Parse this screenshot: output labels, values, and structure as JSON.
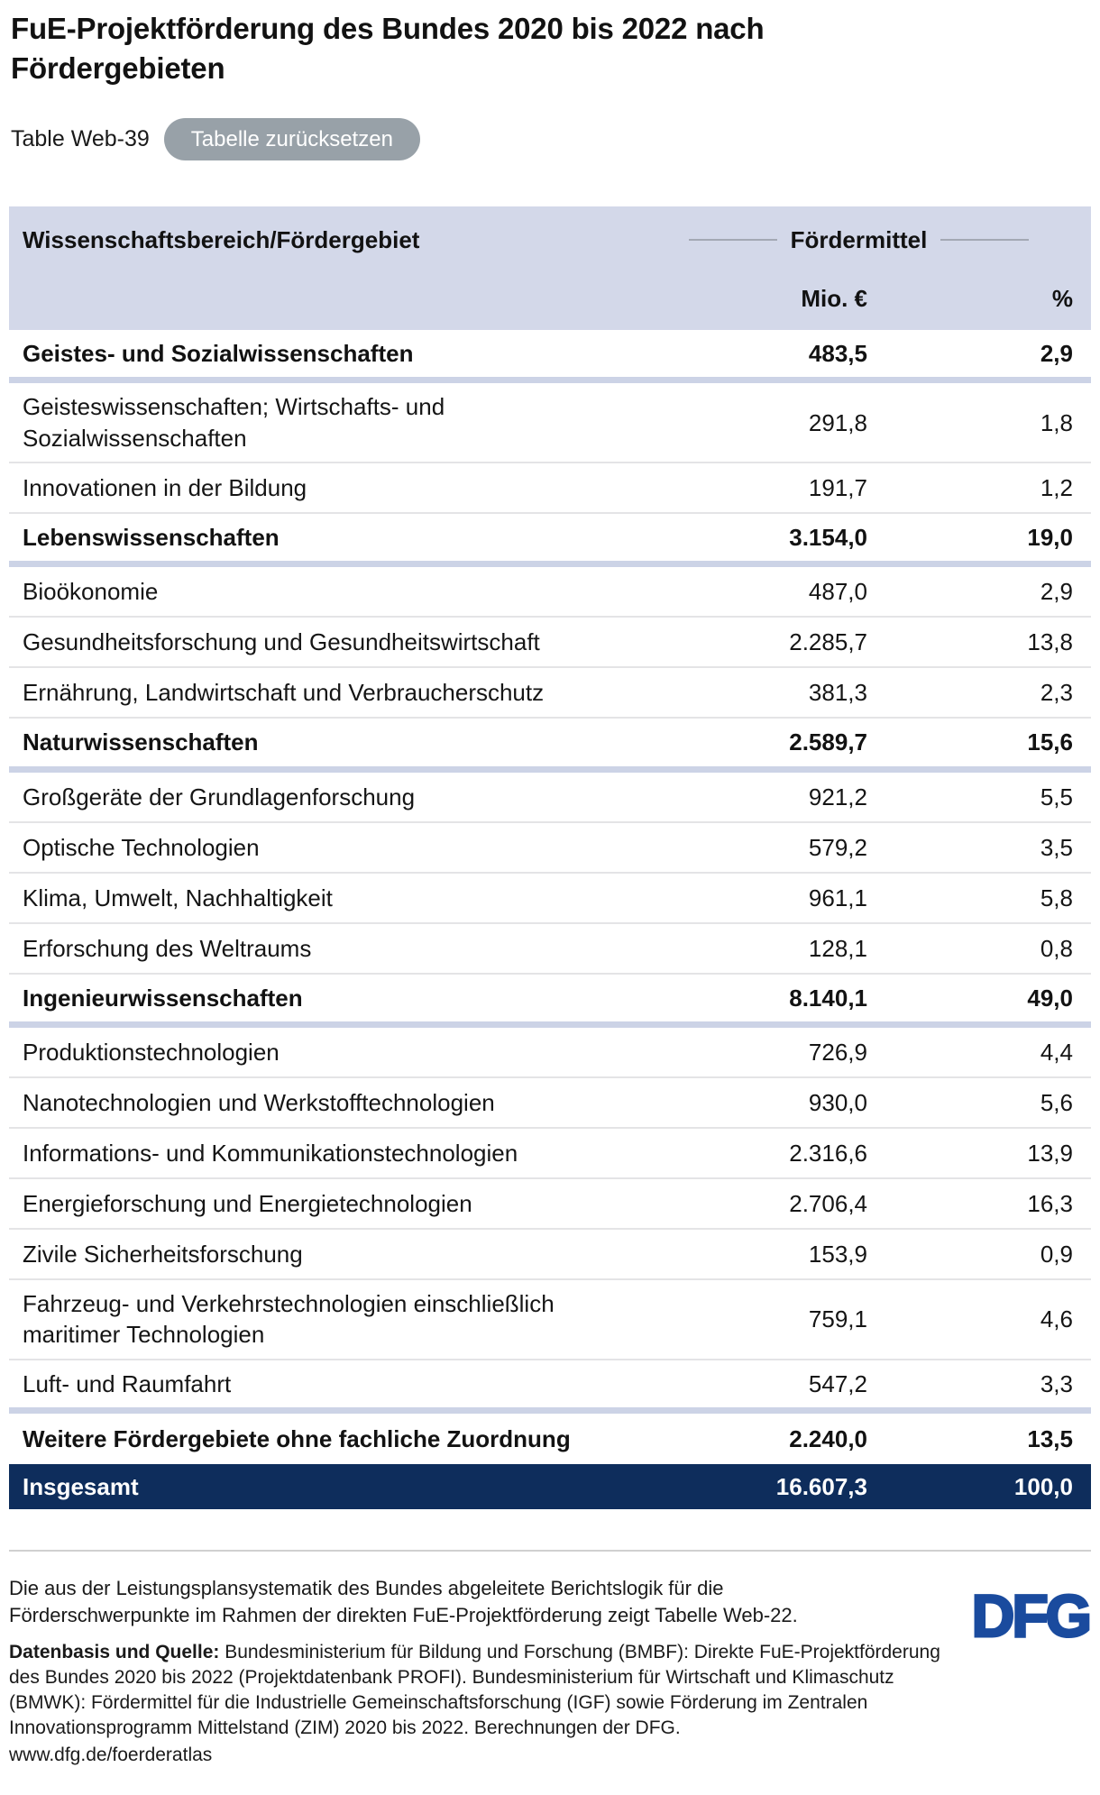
{
  "page": {
    "title": "FuE-Projektförderung des Bundes 2020 bis 2022 nach Fördergebieten",
    "table_label": "Table Web-39",
    "reset_button": "Tabelle zurücksetzen"
  },
  "table": {
    "col1_header": "Wissenschaftsbereich/Fördergebiet",
    "group_header": "Fördermittel",
    "unit_header": "Mio. €",
    "pct_header": "%",
    "rows": [
      {
        "label": "Geistes- und Sozialwissenschaften",
        "mio": "483,5",
        "pct": "2,9"
      },
      {
        "label": "Geisteswissenschaften; Wirtschafts- und Sozialwissenschaften",
        "mio": "291,8",
        "pct": "1,8"
      },
      {
        "label": "Innovationen in der Bildung",
        "mio": "191,7",
        "pct": "1,2"
      },
      {
        "label": "Lebenswissenschaften",
        "mio": "3.154,0",
        "pct": "19,0"
      },
      {
        "label": "Bioökonomie",
        "mio": "487,0",
        "pct": "2,9"
      },
      {
        "label": "Gesundheitsforschung und Gesundheitswirtschaft",
        "mio": "2.285,7",
        "pct": "13,8"
      },
      {
        "label": "Ernährung, Landwirtschaft und Verbraucherschutz",
        "mio": "381,3",
        "pct": "2,3"
      },
      {
        "label": "Naturwissenschaften",
        "mio": "2.589,7",
        "pct": "15,6"
      },
      {
        "label": "Großgeräte der Grundlagenforschung",
        "mio": "921,2",
        "pct": "5,5"
      },
      {
        "label": "Optische Technologien",
        "mio": "579,2",
        "pct": "3,5"
      },
      {
        "label": "Klima, Umwelt, Nachhaltigkeit",
        "mio": "961,1",
        "pct": "5,8"
      },
      {
        "label": "Erforschung des Weltraums",
        "mio": "128,1",
        "pct": "0,8"
      },
      {
        "label": "Ingenieurwissenschaften",
        "mio": "8.140,1",
        "pct": "49,0"
      },
      {
        "label": "Produktionstechnologien",
        "mio": "726,9",
        "pct": "4,4"
      },
      {
        "label": "Nanotechnologien und Werkstofftechnologien",
        "mio": "930,0",
        "pct": "5,6"
      },
      {
        "label": "Informations- und Kommunikationstechnologien",
        "mio": "2.316,6",
        "pct": "13,9"
      },
      {
        "label": "Energieforschung und Energietechnologien",
        "mio": "2.706,4",
        "pct": "16,3"
      },
      {
        "label": "Zivile Sicherheitsforschung",
        "mio": "153,9",
        "pct": "0,9"
      },
      {
        "label": "Fahrzeug- und Verkehrstechnologien einschließlich maritimer Technologien",
        "mio": "759,1",
        "pct": "4,6"
      },
      {
        "label": "Luft- und Raumfahrt",
        "mio": "547,2",
        "pct": "3,3"
      },
      {
        "label": "Weitere Fördergebiete ohne fachliche Zuordnung",
        "mio": "2.240,0",
        "pct": "13,5"
      }
    ],
    "total": {
      "label": "Insgesamt",
      "mio": "16.607,3",
      "pct": "100,0"
    }
  },
  "footer": {
    "note": "Die aus der Leistungsplansystematik des Bundes abgeleitete Berichtslogik für die Förderschwerpunkte im Rahmen der direkten FuE-Projektförderung zeigt Tabelle Web-22.",
    "source_label": "Datenbasis und Quelle:",
    "source_text": " Bundesministerium für Bildung und Forschung (BMBF): Direkte FuE-Projektförderung des Bundes 2020 bis 2022 (Projektdatenbank PROFI). Bundesministerium für Wirtschaft und Klimaschutz (BMWK): Fördermittel für die Industrielle Gemeinschaftsforschung (IGF) sowie Förderung im Zentralen Innovationsprogramm Mittelstand (ZIM) 2020 bis 2022. Berechnungen der DFG.",
    "link": "www.dfg.de/foerderatlas",
    "logo_text": "DFG"
  },
  "colors": {
    "header_band": "#d3d8e9",
    "thick_divider": "#ccd3e6",
    "thin_divider": "#e4e4e6",
    "total_row": "#0e2d5c",
    "button_gray": "#98a1a8",
    "dfg_blue": "#1a4b9e"
  },
  "chart_data": {
    "type": "table",
    "title": "FuE-Projektförderung des Bundes 2020 bis 2022 nach Fördergebieten",
    "table_number": "Table Web-39",
    "columns": [
      "Wissenschaftsbereich/Fördergebiet",
      "Fördermittel Mio. €",
      "Fördermittel %"
    ],
    "rows": [
      {
        "bereich": "Geistes- und Sozialwissenschaften",
        "mio_eur": 483.5,
        "pct": 2.9,
        "is_section": true
      },
      {
        "bereich": "Geisteswissenschaften; Wirtschafts- und Sozialwissenschaften",
        "mio_eur": 291.8,
        "pct": 1.8,
        "is_section": false
      },
      {
        "bereich": "Innovationen in der Bildung",
        "mio_eur": 191.7,
        "pct": 1.2,
        "is_section": false
      },
      {
        "bereich": "Lebenswissenschaften",
        "mio_eur": 3154.0,
        "pct": 19.0,
        "is_section": true
      },
      {
        "bereich": "Bioökonomie",
        "mio_eur": 487.0,
        "pct": 2.9,
        "is_section": false
      },
      {
        "bereich": "Gesundheitsforschung und Gesundheitswirtschaft",
        "mio_eur": 2285.7,
        "pct": 13.8,
        "is_section": false
      },
      {
        "bereich": "Ernährung, Landwirtschaft und Verbraucherschutz",
        "mio_eur": 381.3,
        "pct": 2.3,
        "is_section": false
      },
      {
        "bereich": "Naturwissenschaften",
        "mio_eur": 2589.7,
        "pct": 15.6,
        "is_section": true
      },
      {
        "bereich": "Großgeräte der Grundlagenforschung",
        "mio_eur": 921.2,
        "pct": 5.5,
        "is_section": false
      },
      {
        "bereich": "Optische Technologien",
        "mio_eur": 579.2,
        "pct": 3.5,
        "is_section": false
      },
      {
        "bereich": "Klima, Umwelt, Nachhaltigkeit",
        "mio_eur": 961.1,
        "pct": 5.8,
        "is_section": false
      },
      {
        "bereich": "Erforschung des Weltraums",
        "mio_eur": 128.1,
        "pct": 0.8,
        "is_section": false
      },
      {
        "bereich": "Ingenieurwissenschaften",
        "mio_eur": 8140.1,
        "pct": 49.0,
        "is_section": true
      },
      {
        "bereich": "Produktionstechnologien",
        "mio_eur": 726.9,
        "pct": 4.4,
        "is_section": false
      },
      {
        "bereich": "Nanotechnologien und Werkstofftechnologien",
        "mio_eur": 930.0,
        "pct": 5.6,
        "is_section": false
      },
      {
        "bereich": "Informations- und Kommunikationstechnologien",
        "mio_eur": 2316.6,
        "pct": 13.9,
        "is_section": false
      },
      {
        "bereich": "Energieforschung und Energietechnologien",
        "mio_eur": 2706.4,
        "pct": 16.3,
        "is_section": false
      },
      {
        "bereich": "Zivile Sicherheitsforschung",
        "mio_eur": 153.9,
        "pct": 0.9,
        "is_section": false
      },
      {
        "bereich": "Fahrzeug- und Verkehrstechnologien einschließlich maritimer Technologien",
        "mio_eur": 759.1,
        "pct": 4.6,
        "is_section": false
      },
      {
        "bereich": "Luft- und Raumfahrt",
        "mio_eur": 547.2,
        "pct": 3.3,
        "is_section": false
      },
      {
        "bereich": "Weitere Fördergebiete ohne fachliche Zuordnung",
        "mio_eur": 2240.0,
        "pct": 13.5,
        "is_section": true
      },
      {
        "bereich": "Insgesamt",
        "mio_eur": 16607.3,
        "pct": 100.0,
        "is_total": true
      }
    ]
  }
}
